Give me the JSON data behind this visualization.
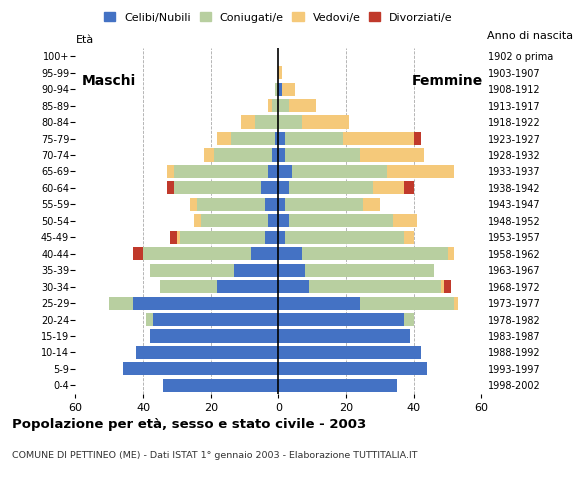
{
  "age_groups": [
    "0-4",
    "5-9",
    "10-14",
    "15-19",
    "20-24",
    "25-29",
    "30-34",
    "35-39",
    "40-44",
    "45-49",
    "50-54",
    "55-59",
    "60-64",
    "65-69",
    "70-74",
    "75-79",
    "80-84",
    "85-89",
    "90-94",
    "95-99",
    "100+"
  ],
  "birth_years": [
    "1998-2002",
    "1993-1997",
    "1988-1992",
    "1983-1987",
    "1978-1982",
    "1973-1977",
    "1968-1972",
    "1963-1967",
    "1958-1962",
    "1953-1957",
    "1948-1952",
    "1943-1947",
    "1938-1942",
    "1933-1937",
    "1928-1932",
    "1923-1927",
    "1918-1922",
    "1913-1917",
    "1908-1912",
    "1903-1907",
    "1902 o prima"
  ],
  "males": {
    "celibe": [
      34,
      46,
      42,
      38,
      37,
      43,
      18,
      13,
      8,
      4,
      3,
      4,
      5,
      3,
      2,
      1,
      0,
      0,
      0,
      0,
      0
    ],
    "coniugato": [
      0,
      0,
      0,
      0,
      2,
      7,
      17,
      25,
      32,
      25,
      20,
      20,
      26,
      28,
      17,
      13,
      7,
      2,
      1,
      0,
      0
    ],
    "vedovo": [
      0,
      0,
      0,
      0,
      0,
      0,
      0,
      0,
      0,
      1,
      2,
      2,
      0,
      2,
      3,
      4,
      4,
      1,
      0,
      0,
      0
    ],
    "divorziato": [
      0,
      0,
      0,
      0,
      0,
      0,
      0,
      0,
      3,
      2,
      0,
      0,
      2,
      0,
      0,
      0,
      0,
      0,
      0,
      0,
      0
    ]
  },
  "females": {
    "nubile": [
      35,
      44,
      42,
      39,
      37,
      24,
      9,
      8,
      7,
      2,
      3,
      2,
      3,
      4,
      2,
      2,
      0,
      0,
      1,
      0,
      0
    ],
    "coniugata": [
      0,
      0,
      0,
      0,
      3,
      28,
      39,
      38,
      43,
      35,
      31,
      23,
      25,
      28,
      22,
      17,
      7,
      3,
      0,
      0,
      0
    ],
    "vedova": [
      0,
      0,
      0,
      0,
      0,
      1,
      1,
      0,
      2,
      3,
      7,
      5,
      9,
      20,
      19,
      21,
      14,
      8,
      4,
      1,
      0
    ],
    "divorziata": [
      0,
      0,
      0,
      0,
      0,
      0,
      2,
      0,
      0,
      0,
      0,
      0,
      3,
      0,
      0,
      2,
      0,
      0,
      0,
      0,
      0
    ]
  },
  "colors": {
    "celibe_nubile": "#4472c4",
    "coniugato_coniugata": "#b8cfa0",
    "vedovo_vedova": "#f5c97a",
    "divorziato_divorziata": "#c0392b"
  },
  "title": "Popolazione per età, sesso e stato civile - 2003",
  "subtitle": "COMUNE DI PETTINEO (ME) - Dati ISTAT 1° gennaio 2003 - Elaborazione TUTTITALIA.IT",
  "xlabel_left": "Maschi",
  "xlabel_right": "Femmine",
  "ylabel_left": "Età",
  "ylabel_right": "Anno di nascita",
  "xlim": 60,
  "background_color": "#ffffff",
  "legend_labels": [
    "Celibi/Nubili",
    "Coniugati/e",
    "Vedovi/e",
    "Divorziati/e"
  ]
}
